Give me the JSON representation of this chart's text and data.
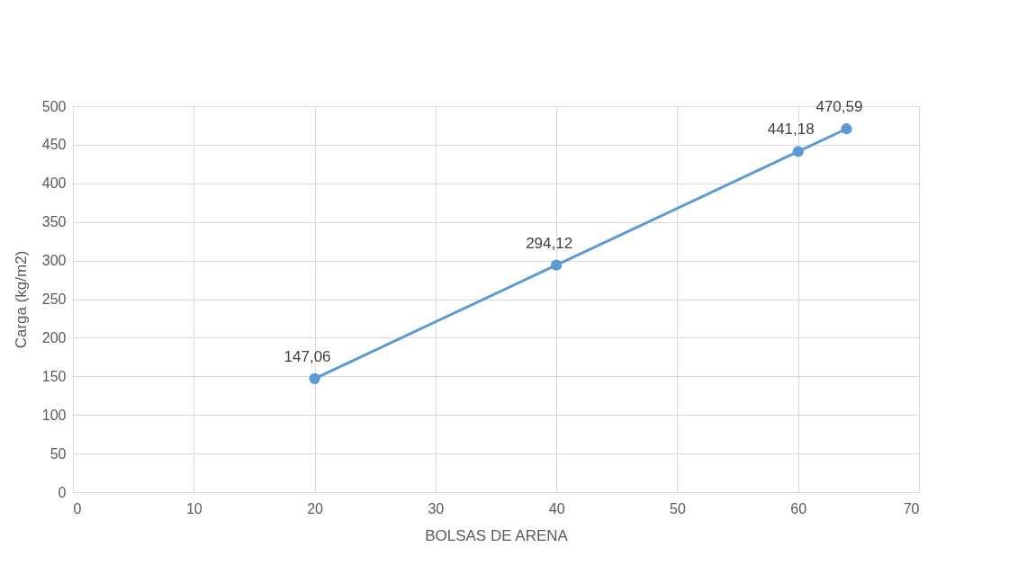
{
  "chart_data": {
    "type": "line",
    "xlabel": "BOLSAS DE ARENA",
    "ylabel": "Carga (kg/m2)",
    "x": [
      20,
      40,
      60,
      64
    ],
    "series": [
      {
        "color": "#5b9bd5",
        "values": [
          147.06,
          294.12,
          441.18,
          470.59
        ],
        "value_labels": [
          "147,06",
          "294,12",
          "441,18",
          "470,59"
        ]
      }
    ],
    "xlim": [
      0,
      70
    ],
    "xticks": [
      0,
      10,
      20,
      30,
      40,
      50,
      60,
      70
    ],
    "ylim": [
      0,
      500
    ],
    "yticks": [
      0,
      50,
      100,
      150,
      200,
      250,
      300,
      350,
      400,
      450,
      500
    ],
    "grid": true,
    "marker": "circle",
    "line_style": "solid"
  }
}
